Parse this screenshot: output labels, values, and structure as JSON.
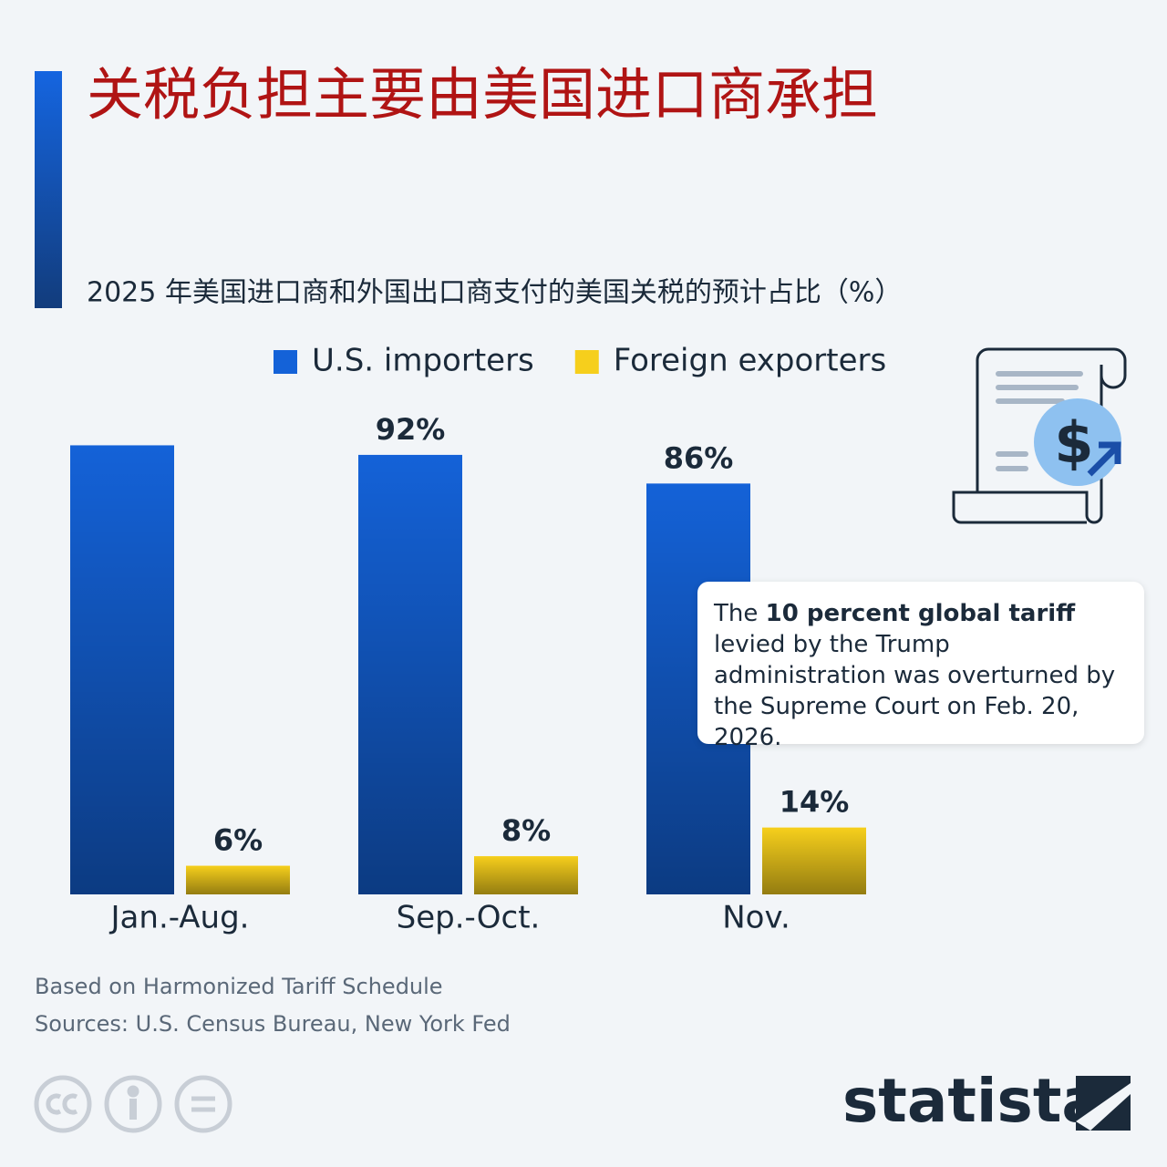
{
  "chart_data": {
    "type": "bar",
    "title": "关税负担主要由美国进口商承担",
    "subtitle": "2025 年美国进口商和外国出口商支付的美国关税的预计占比（%）",
    "categories": [
      "Jan.-Aug.",
      "Sep.-Oct.",
      "Nov."
    ],
    "series": [
      {
        "name": "U.S. importers",
        "color": "#1462d8",
        "values": [
          94,
          92,
          86
        ],
        "value_labels": [
          null,
          "92%",
          "86%"
        ]
      },
      {
        "name": "Foreign exporters",
        "color": "#f6cf1c",
        "values": [
          6,
          8,
          14
        ],
        "value_labels": [
          "6%",
          "8%",
          "14%"
        ]
      }
    ],
    "annotation": {
      "before": "The",
      "bold": "10 percent global tariff",
      "after": "levied by the Trump administration was overturned by the Supreme Court on Feb. 20, 2026."
    },
    "note": "Based on Harmonized Tariff Schedule",
    "source": "Sources: U.S. Census Bureau, New York Fed",
    "brand": "statista"
  }
}
